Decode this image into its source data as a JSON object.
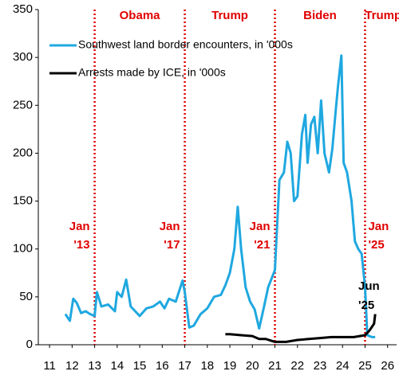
{
  "chart_data": {
    "type": "line",
    "xlim": [
      10.5,
      26.4
    ],
    "xticks": [
      11,
      12,
      13,
      14,
      15,
      16,
      17,
      18,
      19,
      20,
      21,
      22,
      23,
      24,
      25,
      26
    ],
    "ylim": [
      0,
      350
    ],
    "yticks": [
      0,
      50,
      100,
      150,
      200,
      250,
      300,
      350
    ],
    "periods": [
      "Obama",
      "Trump",
      "Biden",
      "Trump"
    ],
    "vlines": [
      {
        "value": 13,
        "label": [
          "Jan",
          "'13"
        ]
      },
      {
        "value": 17,
        "label": [
          "Jan",
          "'17"
        ]
      },
      {
        "value": 21,
        "label": [
          "Jan",
          "'21"
        ]
      },
      {
        "value": 25,
        "label": [
          "Jan",
          "'25"
        ]
      }
    ],
    "vline_color": "#e00000",
    "series": [
      {
        "name": "Southwest land border encounters, in '000s",
        "color": "#1fa8e0",
        "x": [
          11.7,
          11.9,
          12.05,
          12.2,
          12.4,
          12.6,
          12.8,
          13.0,
          13.1,
          13.3,
          13.6,
          13.9,
          14.0,
          14.2,
          14.4,
          14.6,
          14.8,
          15.0,
          15.3,
          15.6,
          15.9,
          16.1,
          16.3,
          16.6,
          16.9,
          17.0,
          17.2,
          17.4,
          17.7,
          18.0,
          18.3,
          18.6,
          18.8,
          19.0,
          19.2,
          19.35,
          19.5,
          19.7,
          19.9,
          20.1,
          20.3,
          20.5,
          20.7,
          20.9,
          21.0,
          21.2,
          21.4,
          21.55,
          21.7,
          21.85,
          22.0,
          22.2,
          22.35,
          22.45,
          22.6,
          22.75,
          22.9,
          23.05,
          23.2,
          23.4,
          23.55,
          23.7,
          23.8,
          23.95,
          24.05,
          24.2,
          24.4,
          24.55,
          24.7,
          24.85,
          25.0,
          25.1,
          25.3,
          25.45
        ],
        "values": [
          32,
          25,
          48,
          44,
          33,
          35,
          32,
          30,
          55,
          40,
          42,
          35,
          55,
          50,
          68,
          40,
          35,
          30,
          38,
          40,
          45,
          38,
          48,
          45,
          67,
          55,
          18,
          20,
          32,
          38,
          50,
          52,
          62,
          75,
          100,
          144,
          100,
          60,
          45,
          37,
          17,
          38,
          60,
          72,
          78,
          172,
          180,
          212,
          200,
          150,
          155,
          220,
          240,
          190,
          230,
          238,
          200,
          255,
          200,
          180,
          205,
          245,
          270,
          302,
          190,
          180,
          150,
          108,
          100,
          95,
          60,
          10,
          8,
          8
        ]
      },
      {
        "name": "Arrests made by ICE, in '000s",
        "color": "#000000",
        "end_label": [
          "Jun",
          "'25"
        ],
        "x": [
          18.8,
          19.0,
          19.5,
          20.0,
          20.3,
          20.6,
          21.0,
          21.5,
          22.0,
          22.5,
          23.0,
          23.5,
          24.0,
          24.5,
          25.0,
          25.2,
          25.4,
          25.45
        ],
        "values": [
          11,
          11,
          10,
          9,
          6,
          6,
          3,
          3,
          5,
          6,
          7,
          8,
          8,
          8,
          10,
          15,
          22,
          32
        ]
      }
    ]
  }
}
